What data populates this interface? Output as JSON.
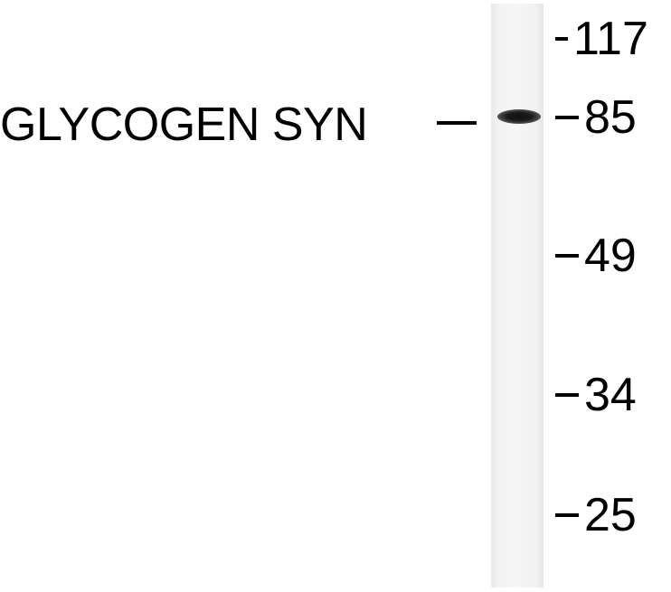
{
  "protein": {
    "label": "GLYCOGEN SYN"
  },
  "markers": [
    {
      "value": "117"
    },
    {
      "value": "85"
    },
    {
      "value": "49"
    },
    {
      "value": "34"
    },
    {
      "value": "25"
    }
  ]
}
